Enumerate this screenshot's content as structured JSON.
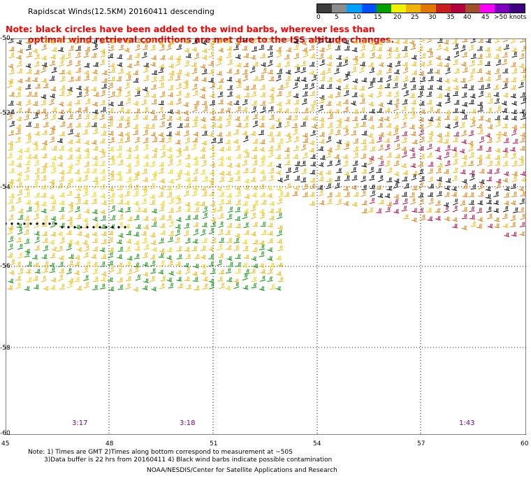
{
  "header": {
    "title": "Rapidscat Winds(12.5KM) 20160411 descending",
    "note_line1": "Note: black circles have been added to the wind barbs, wherever less than",
    "note_line2": "optimal wind retrieval conditions are met due to the ISS altitude changes."
  },
  "legend": {
    "labels": [
      "0",
      "5",
      "10",
      "15",
      "20",
      "25",
      "30",
      "35",
      "40",
      "45",
      ">50 knots"
    ],
    "colors": [
      "#3c3c3c",
      "#8c8c8c",
      "#00a0ff",
      "#0050ff",
      "#00a000",
      "#f0f000",
      "#f0b400",
      "#e07800",
      "#c81e1e",
      "#b4003c",
      "#a05028",
      "#ff00ff",
      "#8000c0",
      "#3c0080"
    ]
  },
  "map": {
    "lat_labels": [
      "-50",
      "-52",
      "-54",
      "-56",
      "-58",
      "-60"
    ],
    "lon_labels": [
      "45",
      "48",
      "51",
      "54",
      "57",
      "60"
    ],
    "time_labels": [
      "3:17",
      "3:18",
      "1:43"
    ],
    "region": {
      "lon_min": 45,
      "lon_max": 60,
      "lat_min": -60,
      "lat_max": -50
    }
  },
  "footer": {
    "note1": "Note: 1) Times are GMT 2)Times along bottom correspond to measurement at ~50S",
    "note2": "3)Data buffer is 22 hrs from 20160411 4) Black wind barbs indicate possible contamination",
    "credit": "NOAA/NESDIS/Center for Satellite Applications and Research"
  }
}
